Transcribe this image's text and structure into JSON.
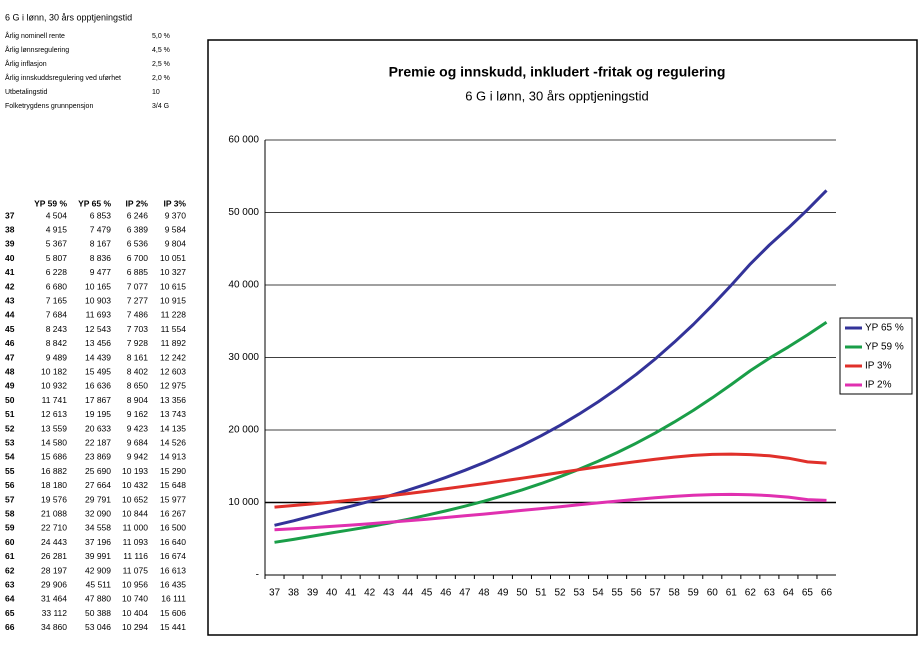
{
  "header": {
    "title": "6 G i lønn, 30 års opptjeningstid"
  },
  "parameters": {
    "rows": [
      {
        "label": "Årlig nominell rente",
        "value": "5,0 %"
      },
      {
        "label": "Årlig lønnsregulering",
        "value": "4,5 %"
      },
      {
        "label": "Årlig inflasjon",
        "value": "2,5 %"
      },
      {
        "label": "Årlig innskuddsregulering ved uførhet",
        "value": "2,0 %"
      },
      {
        "label": "Utbetalingstid",
        "value": "10"
      },
      {
        "label": "Folketrygdens grunnpensjon",
        "value": "3/4 G"
      }
    ]
  },
  "table": {
    "header": [
      "YP 59 %",
      "YP 65 %",
      "IP 2%",
      "IP 3%"
    ],
    "rows": [
      [
        "37",
        "4 504",
        "6 853",
        "6 246",
        "9 370"
      ],
      [
        "38",
        "4 915",
        "7 479",
        "6 389",
        "9 584"
      ],
      [
        "39",
        "5 367",
        "8 167",
        "6 536",
        "9 804"
      ],
      [
        "40",
        "5 807",
        "8 836",
        "6 700",
        "10 051"
      ],
      [
        "41",
        "6 228",
        "9 477",
        "6 885",
        "10 327"
      ],
      [
        "42",
        "6 680",
        "10 165",
        "7 077",
        "10 615"
      ],
      [
        "43",
        "7 165",
        "10 903",
        "7 277",
        "10 915"
      ],
      [
        "44",
        "7 684",
        "11 693",
        "7 486",
        "11 228"
      ],
      [
        "45",
        "8 243",
        "12 543",
        "7 703",
        "11 554"
      ],
      [
        "46",
        "8 842",
        "13 456",
        "7 928",
        "11 892"
      ],
      [
        "47",
        "9 489",
        "14 439",
        "8 161",
        "12 242"
      ],
      [
        "48",
        "10 182",
        "15 495",
        "8 402",
        "12 603"
      ],
      [
        "49",
        "10 932",
        "16 636",
        "8 650",
        "12 975"
      ],
      [
        "50",
        "11 741",
        "17 867",
        "8 904",
        "13 356"
      ],
      [
        "51",
        "12 613",
        "19 195",
        "9 162",
        "13 743"
      ],
      [
        "52",
        "13 559",
        "20 633",
        "9 423",
        "14 135"
      ],
      [
        "53",
        "14 580",
        "22 187",
        "9 684",
        "14 526"
      ],
      [
        "54",
        "15 686",
        "23 869",
        "9 942",
        "14 913"
      ],
      [
        "55",
        "16 882",
        "25 690",
        "10 193",
        "15 290"
      ],
      [
        "56",
        "18 180",
        "27 664",
        "10 432",
        "15 648"
      ],
      [
        "57",
        "19 576",
        "29 791",
        "10 652",
        "15 977"
      ],
      [
        "58",
        "21 088",
        "32 090",
        "10 844",
        "16 267"
      ],
      [
        "59",
        "22 710",
        "34 558",
        "11 000",
        "16 500"
      ],
      [
        "60",
        "24 443",
        "37 196",
        "11 093",
        "16 640"
      ],
      [
        "61",
        "26 281",
        "39 991",
        "11 116",
        "16 674"
      ],
      [
        "62",
        "28 197",
        "42 909",
        "11 075",
        "16 613"
      ],
      [
        "63",
        "29 906",
        "45 511",
        "10 956",
        "16 435"
      ],
      [
        "64",
        "31 464",
        "47 880",
        "10 740",
        "16 111"
      ],
      [
        "65",
        "33 112",
        "50 388",
        "10 404",
        "15 606"
      ],
      [
        "66",
        "34 860",
        "53 046",
        "10 294",
        "15 441"
      ]
    ]
  },
  "chart_data": {
    "type": "line",
    "title": "Premie og innskudd, inkludert -fritak og regulering",
    "subtitle": "6 G i lønn, 30 års opptjeningstid",
    "categories": [
      "37",
      "38",
      "39",
      "40",
      "41",
      "42",
      "43",
      "44",
      "45",
      "46",
      "47",
      "48",
      "49",
      "50",
      "51",
      "52",
      "53",
      "54",
      "55",
      "56",
      "57",
      "58",
      "59",
      "60",
      "61",
      "62",
      "63",
      "64",
      "65",
      "66"
    ],
    "ylim": [
      0,
      60000
    ],
    "yticks": [
      {
        "value": 0,
        "label": "-"
      },
      {
        "value": 10000,
        "label": "10 000"
      },
      {
        "value": 20000,
        "label": "20 000"
      },
      {
        "value": 30000,
        "label": "30 000"
      },
      {
        "value": 40000,
        "label": "40 000"
      },
      {
        "value": 50000,
        "label": "50 000"
      },
      {
        "value": 60000,
        "label": "60 000"
      }
    ],
    "grid": true,
    "legend": "right",
    "series": [
      {
        "name": "YP 65 %",
        "color": "#333399",
        "values": [
          6853,
          7479,
          8167,
          8836,
          9477,
          10165,
          10903,
          11693,
          12543,
          13456,
          14439,
          15495,
          16636,
          17867,
          19195,
          20633,
          22187,
          23869,
          25690,
          27664,
          29791,
          32090,
          34558,
          37196,
          39991,
          42909,
          45511,
          47880,
          50388,
          53046
        ]
      },
      {
        "name": "YP 59 %",
        "color": "#1a9e48",
        "values": [
          4504,
          4915,
          5367,
          5807,
          6228,
          6680,
          7165,
          7684,
          8243,
          8842,
          9489,
          10182,
          10932,
          11741,
          12613,
          13559,
          14580,
          15686,
          16882,
          18180,
          19576,
          21088,
          22710,
          24443,
          26281,
          28197,
          29906,
          31464,
          33112,
          34860
        ]
      },
      {
        "name": "IP 3%",
        "color": "#e0302a",
        "values": [
          9370,
          9584,
          9804,
          10051,
          10327,
          10615,
          10915,
          11228,
          11554,
          11892,
          12242,
          12603,
          12975,
          13356,
          13743,
          14135,
          14526,
          14913,
          15290,
          15648,
          15977,
          16267,
          16500,
          16640,
          16674,
          16613,
          16435,
          16111,
          15606,
          15441
        ]
      },
      {
        "name": "IP 2%",
        "color": "#e030b0",
        "values": [
          6246,
          6389,
          6536,
          6700,
          6885,
          7077,
          7277,
          7486,
          7703,
          7928,
          8161,
          8402,
          8650,
          8904,
          9162,
          9423,
          9684,
          9942,
          10193,
          10432,
          10652,
          10844,
          11000,
          11093,
          11116,
          11075,
          10956,
          10740,
          10404,
          10294
        ]
      }
    ]
  }
}
